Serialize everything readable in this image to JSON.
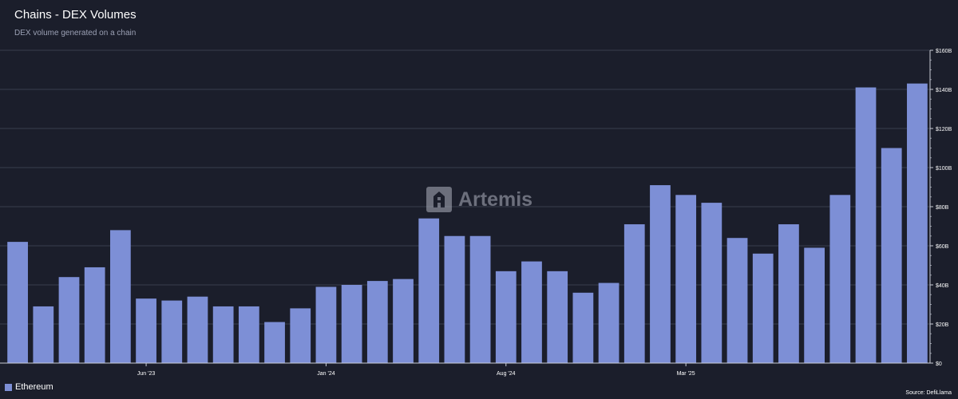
{
  "header": {
    "title": "Chains - DEX Volumes",
    "subtitle": "DEX volume generated on a chain"
  },
  "watermark": {
    "icon": "artemis-logo-icon",
    "text": "Artemis"
  },
  "legend": {
    "label": "Ethereum"
  },
  "footer": {
    "source": "Source: DefiLlama"
  },
  "colors": {
    "background": "#1b1e2b",
    "bar": "#7d8fd6",
    "grid": "#3a3e4d",
    "axis_text": "#ffffff"
  },
  "chart_data": {
    "type": "bar",
    "categories": [
      "2023-01",
      "2023-02",
      "2023-03",
      "2023-04",
      "2023-05",
      "2023-06",
      "2023-07",
      "2023-08",
      "2023-09",
      "2023-10",
      "2023-11",
      "2023-12",
      "2024-01",
      "2024-02",
      "2024-03",
      "2024-04",
      "2024-05",
      "2024-06",
      "2024-07",
      "2024-08",
      "2024-09",
      "2024-10",
      "2024-11",
      "2024-12",
      "2025-01",
      "2025-02",
      "2025-03",
      "2025-04",
      "2025-05",
      "2025-06",
      "2025-07",
      "2025-08",
      "2025-09",
      "2025-10",
      "2025-11",
      "2025-12"
    ],
    "series": [
      {
        "name": "Ethereum",
        "values": [
          62,
          29,
          44,
          49,
          68,
          33,
          32,
          34,
          29,
          29,
          21,
          28,
          39,
          40,
          42,
          43,
          74,
          65,
          65,
          47,
          52,
          47,
          36,
          41,
          71,
          91,
          86,
          82,
          64,
          56,
          71,
          59,
          86,
          141,
          110,
          143
        ]
      }
    ],
    "x_tick_labels": [
      {
        "label": "Jun '23",
        "category": "2023-06"
      },
      {
        "label": "Jan '24",
        "category": "2024-01"
      },
      {
        "label": "Aug '24",
        "category": "2024-08"
      },
      {
        "label": "Mar '25",
        "category": "2025-03"
      }
    ],
    "y_ticks": [
      {
        "value": 0,
        "label": "$0"
      },
      {
        "value": 20,
        "label": "$20B"
      },
      {
        "value": 40,
        "label": "$40B"
      },
      {
        "value": 60,
        "label": "$60B"
      },
      {
        "value": 80,
        "label": "$80B"
      },
      {
        "value": 100,
        "label": "$100B"
      },
      {
        "value": 120,
        "label": "$120B"
      },
      {
        "value": 140,
        "label": "$140B"
      },
      {
        "value": 160,
        "label": "$160B"
      }
    ],
    "ylim": [
      0,
      160
    ],
    "y_axis_position": "right",
    "grid": true,
    "legend_position": "bottom-left"
  }
}
